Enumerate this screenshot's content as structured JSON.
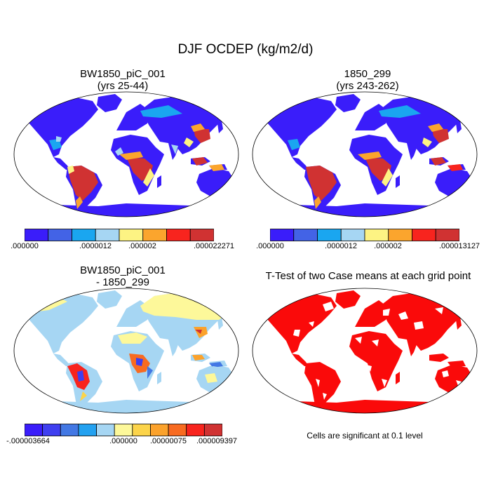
{
  "figure": {
    "title": "DJF OCDEP (kg/m2/d)"
  },
  "panels": [
    {
      "id": "case",
      "title_line1": "BW1850_piC_001",
      "title_line2": "(yrs 25-44)",
      "colorbar": {
        "colors": [
          "#3a1dfa",
          "#4363e6",
          "#1aa6f0",
          "#a6d6f3",
          "#fdf383",
          "#fba52d",
          "#f8241e",
          "#d03232"
        ],
        "labels": [
          ".000000",
          ".0000012",
          ".000002",
          ".000022271"
        ]
      }
    },
    {
      "id": "control",
      "title_line1": "1850_299",
      "title_line2": "(yrs 243-262)",
      "colorbar": {
        "colors": [
          "#3a1dfa",
          "#4363e6",
          "#1aa6f0",
          "#a6d6f3",
          "#fdf383",
          "#fba52d",
          "#f8241e",
          "#d03232"
        ],
        "labels": [
          ".000000",
          ".0000012",
          ".000002",
          ".000013127"
        ]
      }
    },
    {
      "id": "difference",
      "title_line1": "BW1850_piC_001",
      "title_line2": "- 1850_299",
      "colorbar": {
        "colors": [
          "#3a1dfa",
          "#3f3ff0",
          "#4378e4",
          "#23a1f0",
          "#a6d6f3",
          "#fdf89a",
          "#fcd44a",
          "#fba22c",
          "#f86b21",
          "#f8241e",
          "#d03232"
        ],
        "labels": [
          "-.000003664",
          ".000000",
          ".00000075",
          ".000009397"
        ]
      }
    },
    {
      "id": "ttest",
      "title_line1": "T-Test of two Case means at each grid point",
      "note": "Cells are significant at 0.1 level"
    }
  ]
}
